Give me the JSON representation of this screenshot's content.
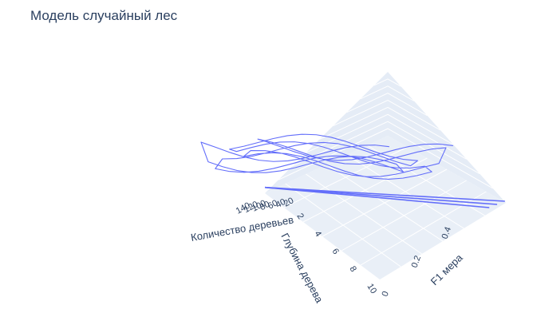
{
  "title": "Модель случайный лес",
  "chart_data": {
    "type": "line3d",
    "title": "Модель случайный лес",
    "axes": {
      "x": {
        "title": "Количество деревьев",
        "ticks": [
          "140",
          "120",
          "100",
          "80",
          "60",
          "40",
          "20"
        ],
        "range": [
          0,
          140
        ]
      },
      "y": {
        "title": "Глубина дерева",
        "ticks": [
          "2",
          "4",
          "6",
          "8",
          "10"
        ],
        "range": [
          1,
          10
        ]
      },
      "z": {
        "title": "F1 мера",
        "ticks": [
          "0",
          "0.2",
          "0.4"
        ],
        "range": [
          0,
          0.6
        ]
      }
    },
    "trees": [
      10,
      20,
      30,
      40,
      50,
      60,
      70,
      80,
      90,
      100,
      110,
      120,
      130,
      140
    ],
    "depths": [
      1,
      2,
      3,
      4,
      5,
      6,
      7,
      8,
      9,
      10
    ],
    "line_color": "#636efa",
    "grid": true,
    "background": "#e5ecf6"
  }
}
